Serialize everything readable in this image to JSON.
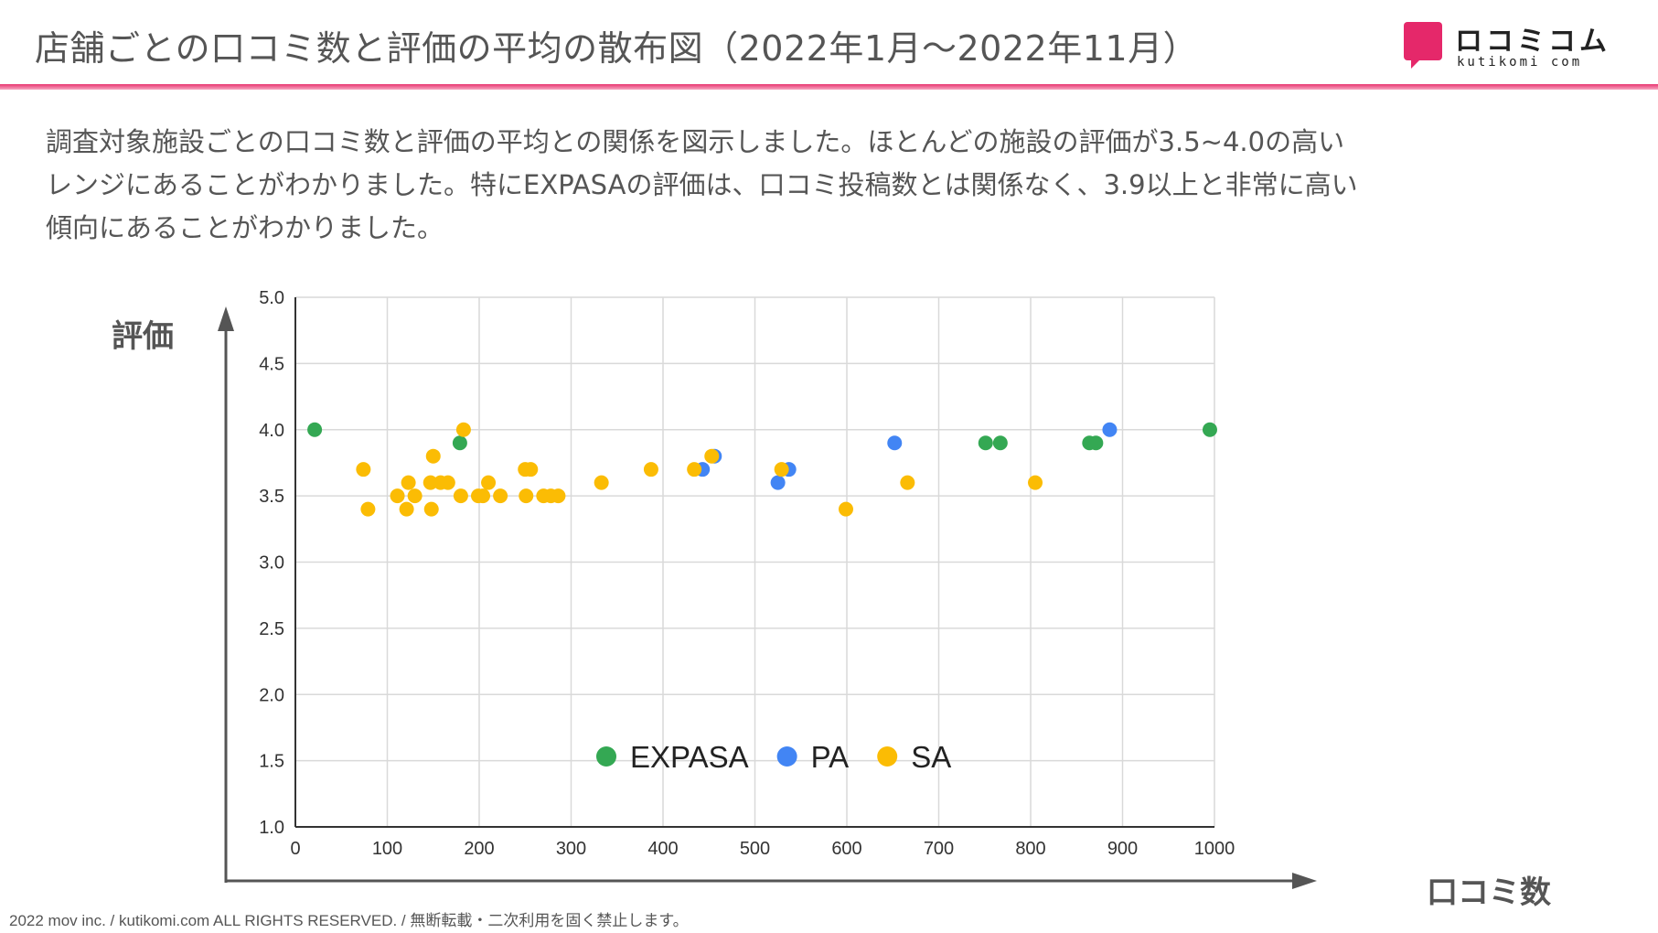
{
  "header": {
    "title": "店舗ごとの口コミ数と評価の平均の散布図（2022年1月〜2022年11月）",
    "logo_name": "ロコミコム",
    "logo_url": "kutikomi com",
    "accent_color": "#e5286a"
  },
  "description": {
    "line1": "調査対象施設ごとの口コミ数と評価の平均との関係を図示しました。ほとんどの施設の評価が3.5~4.0の高い",
    "line2": "レンジにあることがわかりました。特にEXPASAの評価は、口コミ投稿数とは関係なく、3.9以上と非常に高い",
    "line3": "傾向にあることがわかりました。"
  },
  "axis_labels": {
    "y": "評価",
    "x": "口コミ数"
  },
  "chart_data": {
    "type": "scatter",
    "title": "",
    "xlabel": "口コミ数",
    "ylabel": "評価",
    "xlim": [
      0,
      1000
    ],
    "ylim": [
      1.0,
      5.0
    ],
    "x_ticks": [
      "0",
      "100",
      "200",
      "300",
      "400",
      "500",
      "600",
      "700",
      "800",
      "900",
      "1000"
    ],
    "y_ticks": [
      "1.0",
      "1.5",
      "2.0",
      "2.5",
      "3.0",
      "3.5",
      "4.0",
      "4.5",
      "5.0"
    ],
    "grid": true,
    "legend_position": "bottom-center",
    "series": [
      {
        "name": "EXPASA",
        "color": "#34a853",
        "points": [
          [
            21,
            4.0
          ],
          [
            179,
            3.9
          ],
          [
            751,
            3.9
          ],
          [
            767,
            3.9
          ],
          [
            864,
            3.9
          ],
          [
            871,
            3.9
          ],
          [
            995,
            4.0
          ]
        ]
      },
      {
        "name": "PA",
        "color": "#4285f4",
        "points": [
          [
            443,
            3.7
          ],
          [
            456,
            3.8
          ],
          [
            525,
            3.6
          ],
          [
            537,
            3.7
          ],
          [
            652,
            3.9
          ],
          [
            886,
            4.0
          ]
        ]
      },
      {
        "name": "SA",
        "color": "#fbbc04",
        "points": [
          [
            74,
            3.7
          ],
          [
            79,
            3.4
          ],
          [
            111,
            3.5
          ],
          [
            121,
            3.4
          ],
          [
            123,
            3.6
          ],
          [
            130,
            3.5
          ],
          [
            147,
            3.6
          ],
          [
            148,
            3.4
          ],
          [
            150,
            3.8
          ],
          [
            158,
            3.6
          ],
          [
            166,
            3.6
          ],
          [
            180,
            3.5
          ],
          [
            183,
            4.0
          ],
          [
            199,
            3.5
          ],
          [
            204,
            3.5
          ],
          [
            210,
            3.6
          ],
          [
            223,
            3.5
          ],
          [
            250,
            3.7
          ],
          [
            251,
            3.5
          ],
          [
            256,
            3.7
          ],
          [
            270,
            3.5
          ],
          [
            278,
            3.5
          ],
          [
            286,
            3.5
          ],
          [
            333,
            3.6
          ],
          [
            387,
            3.7
          ],
          [
            434,
            3.7
          ],
          [
            453,
            3.8
          ],
          [
            529,
            3.7
          ],
          [
            599,
            3.4
          ],
          [
            666,
            3.6
          ],
          [
            805,
            3.6
          ]
        ]
      }
    ]
  },
  "footer": {
    "copyright": "2022 mov inc. / kutikomi.com ALL RIGHTS RESERVED. / 無断転載・二次利用を固く禁止します。"
  }
}
